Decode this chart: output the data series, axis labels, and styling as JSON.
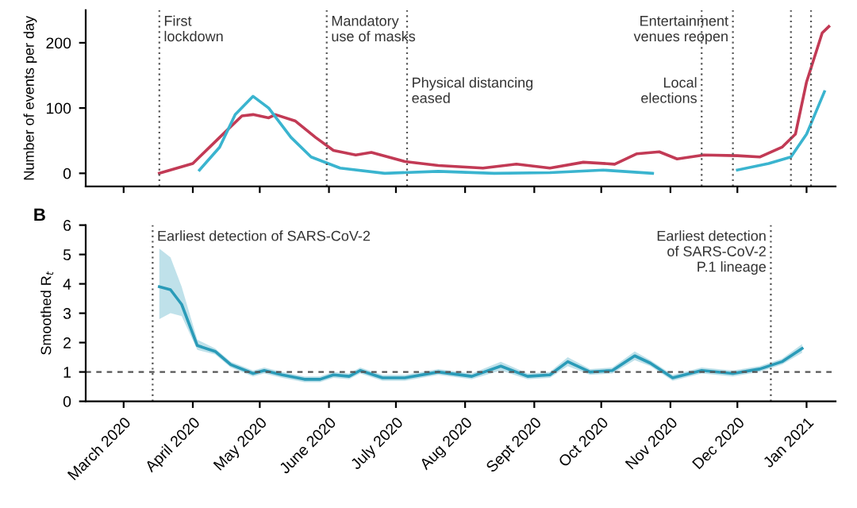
{
  "chart_data": [
    {
      "type": "line",
      "ylabel": "Number of events per day",
      "xlim": [
        "2020-02-13",
        "2021-01-14"
      ],
      "ylim": [
        -20,
        250
      ],
      "yticks": [
        0,
        100,
        200
      ],
      "xticks": [
        {
          "value": "2020-03-01",
          "label": null
        },
        {
          "value": "2020-04-01",
          "label": null
        },
        {
          "value": "2020-05-01",
          "label": null
        },
        {
          "value": "2020-06-01",
          "label": null
        },
        {
          "value": "2020-07-01",
          "label": null
        },
        {
          "value": "2020-08-01",
          "label": null
        },
        {
          "value": "2020-09-01",
          "label": null
        },
        {
          "value": "2020-10-01",
          "label": null
        },
        {
          "value": "2020-11-01",
          "label": null
        },
        {
          "value": "2020-12-01",
          "label": null
        },
        {
          "value": "2021-01-01",
          "label": null
        }
      ],
      "tick_labels": "y",
      "grid": false,
      "marker": "none",
      "line_style": "solid",
      "series": [
        {
          "color": "#c23a55",
          "x": [
            "2020-03-17",
            "2020-04-01",
            "2020-04-13",
            "2020-04-23",
            "2020-04-28",
            "2020-05-05",
            "2020-05-08",
            "2020-05-17",
            "2020-05-26",
            "2020-06-03",
            "2020-06-13",
            "2020-06-20",
            "2020-07-05",
            "2020-07-20",
            "2020-08-09",
            "2020-08-24",
            "2020-09-08",
            "2020-09-23",
            "2020-10-07",
            "2020-10-17",
            "2020-10-27",
            "2020-11-04",
            "2020-11-16",
            "2020-12-01",
            "2020-12-11",
            "2020-12-21",
            "2020-12-27",
            "2021-01-01",
            "2021-01-08",
            "2021-01-11"
          ],
          "values": [
            0,
            15,
            55,
            88,
            90,
            85,
            90,
            80,
            55,
            35,
            28,
            32,
            18,
            12,
            8,
            14,
            8,
            17,
            14,
            30,
            33,
            22,
            28,
            27,
            25,
            40,
            60,
            140,
            215,
            225
          ]
        },
        {
          "color": "#3ab4cf",
          "x": [
            "2020-04-04",
            "2020-04-13",
            "2020-04-20",
            "2020-04-28",
            "2020-05-05",
            "2020-05-15",
            "2020-05-24",
            "2020-06-06",
            "2020-06-26",
            "2020-07-20",
            "2020-08-14",
            "2020-09-08",
            "2020-10-02",
            "2020-10-24",
            "2020-11-15",
            "2020-12-01",
            "2020-12-15",
            "2020-12-25",
            "2021-01-01",
            "2021-01-09"
          ],
          "values": [
            5,
            40,
            90,
            118,
            100,
            55,
            25,
            8,
            0,
            3,
            0,
            1,
            5,
            0,
            null,
            5,
            15,
            25,
            60,
            125
          ]
        }
      ],
      "ref_lines": [
        {
          "axis": "x",
          "value": "2020-03-17",
          "label": "First\nlockdown",
          "color": "#555555",
          "line_style": "dotted"
        },
        {
          "axis": "x",
          "value": "2020-05-31",
          "label": "Mandatory\nuse of masks",
          "color": "#555555",
          "line_style": "dotted"
        },
        {
          "axis": "x",
          "value": "2020-07-06",
          "label": "Physical distancing\neased",
          "color": "#555555",
          "line_style": "dotted"
        },
        {
          "axis": "x",
          "value": "2020-11-29",
          "label": "Entertainment\nvenues reopen",
          "color": "#555555",
          "line_style": "dotted"
        },
        {
          "axis": "x",
          "value": "2020-11-15",
          "label": "Local\nelections",
          "color": "#555555",
          "line_style": "dotted"
        },
        {
          "axis": "x",
          "value": "2020-12-25",
          "label": null,
          "color": "#555555",
          "line_style": "dotted"
        },
        {
          "axis": "x",
          "value": "2021-01-03",
          "label": null,
          "color": "#555555",
          "line_style": "dotted"
        }
      ]
    },
    {
      "type": "line",
      "title": "B",
      "ylabel": "Smoothed R$_{t}$",
      "xlim": [
        "2020-02-13",
        "2021-01-14"
      ],
      "ylim": [
        0,
        6
      ],
      "yticks": [
        0,
        1,
        2,
        3,
        4,
        5,
        6
      ],
      "xticks": [
        {
          "value": "2020-03-01",
          "label": "March 2020"
        },
        {
          "value": "2020-04-01",
          "label": "April 2020"
        },
        {
          "value": "2020-05-01",
          "label": "May 2020"
        },
        {
          "value": "2020-06-01",
          "label": "June 2020"
        },
        {
          "value": "2020-07-01",
          "label": "July 2020"
        },
        {
          "value": "2020-08-01",
          "label": "Aug 2020"
        },
        {
          "value": "2020-09-01",
          "label": "Sept 2020"
        },
        {
          "value": "2020-10-01",
          "label": "Oct 2020"
        },
        {
          "value": "2020-11-01",
          "label": "Nov 2020"
        },
        {
          "value": "2020-12-01",
          "label": "Dec 2020"
        },
        {
          "value": "2021-01-01",
          "label": "Jan 2021"
        }
      ],
      "grid": false,
      "marker": "none",
      "line_style": "solid",
      "series": [
        {
          "color": "#2a9bb8",
          "x": [
            "2020-03-17",
            "2020-03-22",
            "2020-03-27",
            "2020-04-03",
            "2020-04-11",
            "2020-04-18",
            "2020-04-28",
            "2020-05-03",
            "2020-05-11",
            "2020-05-21",
            "2020-05-28",
            "2020-06-03",
            "2020-06-10",
            "2020-06-15",
            "2020-06-25",
            "2020-07-05",
            "2020-07-20",
            "2020-08-04",
            "2020-08-17",
            "2020-08-29",
            "2020-09-08",
            "2020-09-16",
            "2020-09-26",
            "2020-10-06",
            "2020-10-16",
            "2020-10-23",
            "2020-11-02",
            "2020-11-15",
            "2020-11-29",
            "2020-12-11",
            "2020-12-21",
            "2020-12-30"
          ],
          "values": [
            3.9,
            3.8,
            3.3,
            1.9,
            1.7,
            1.25,
            0.95,
            1.05,
            0.9,
            0.75,
            0.75,
            0.9,
            0.85,
            1.05,
            0.8,
            0.8,
            1.0,
            0.85,
            1.2,
            0.85,
            0.9,
            1.35,
            1.0,
            1.05,
            1.55,
            1.3,
            0.8,
            1.05,
            0.95,
            1.1,
            1.35,
            1.8
          ],
          "lower": [
            2.8,
            3.0,
            2.9,
            1.75,
            1.6,
            1.15,
            0.85,
            0.95,
            0.8,
            0.65,
            0.65,
            0.8,
            0.75,
            0.95,
            0.7,
            0.7,
            0.9,
            0.75,
            1.05,
            0.75,
            0.8,
            1.2,
            0.9,
            0.95,
            1.4,
            1.2,
            0.7,
            0.95,
            0.85,
            1.0,
            1.25,
            1.65
          ],
          "upper": [
            5.2,
            4.9,
            3.9,
            2.1,
            1.8,
            1.35,
            1.05,
            1.15,
            1.0,
            0.85,
            0.85,
            1.0,
            0.95,
            1.15,
            0.9,
            0.9,
            1.1,
            0.95,
            1.35,
            0.95,
            1.0,
            1.5,
            1.1,
            1.15,
            1.7,
            1.4,
            0.9,
            1.15,
            1.05,
            1.2,
            1.45,
            1.95
          ]
        }
      ],
      "ref_lines": [
        {
          "axis": "x",
          "value": "2020-03-14",
          "label": "Earliest detection of SARS-CoV-2",
          "color": "#555555",
          "line_style": "dotted"
        },
        {
          "axis": "x",
          "value": "2020-12-16",
          "label": "Earliest detection\nof SARS-CoV-2\nP.1 lineage",
          "color": "#555555",
          "line_style": "dotted"
        },
        {
          "axis": "y",
          "value": 1,
          "label": null,
          "color": "#555555",
          "line_style": "dashed"
        }
      ]
    }
  ]
}
